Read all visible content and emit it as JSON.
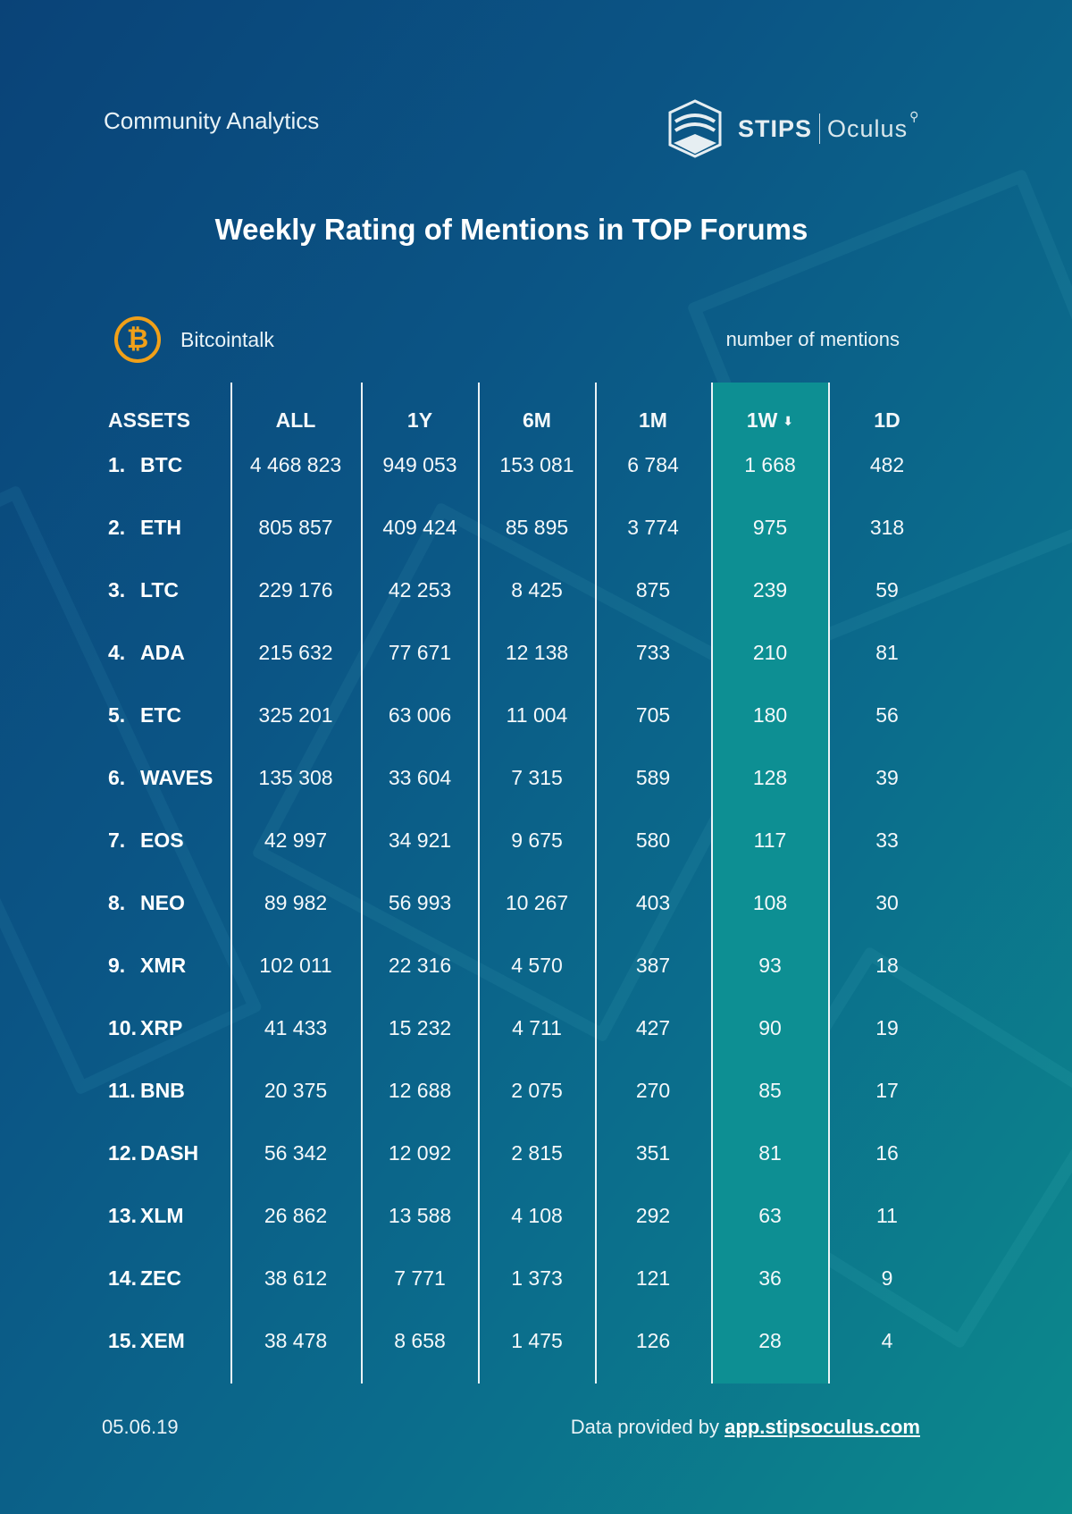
{
  "header": {
    "section": "Community Analytics",
    "logo_brand": "STIPS",
    "logo_product": "Oculus"
  },
  "title": "Weekly Rating of Mentions in TOP Forums",
  "forum": {
    "name": "Bitcointalk",
    "icon": "bitcoin-icon"
  },
  "unit_note": "number of mentions",
  "table": {
    "columns": [
      "ASSETS",
      "ALL",
      "1Y",
      "6M",
      "1M",
      "1W",
      "1D"
    ],
    "sorted_column": "1W",
    "highlight_color": "#0d8f93",
    "rows": [
      {
        "rank": "1.",
        "asset": "BTC",
        "all": "4 468 823",
        "y1": "949 053",
        "m6": "153 081",
        "m1": "6 784",
        "w1": "1 668",
        "d1": "482"
      },
      {
        "rank": "2.",
        "asset": "ETH",
        "all": "805 857",
        "y1": "409 424",
        "m6": "85 895",
        "m1": "3 774",
        "w1": "975",
        "d1": "318"
      },
      {
        "rank": "3.",
        "asset": "LTC",
        "all": "229 176",
        "y1": "42 253",
        "m6": "8 425",
        "m1": "875",
        "w1": "239",
        "d1": "59"
      },
      {
        "rank": "4.",
        "asset": "ADA",
        "all": "215 632",
        "y1": "77 671",
        "m6": "12 138",
        "m1": "733",
        "w1": "210",
        "d1": "81"
      },
      {
        "rank": "5.",
        "asset": "ETC",
        "all": "325 201",
        "y1": "63 006",
        "m6": "11 004",
        "m1": "705",
        "w1": "180",
        "d1": "56"
      },
      {
        "rank": "6.",
        "asset": "WAVES",
        "all": "135 308",
        "y1": "33 604",
        "m6": "7 315",
        "m1": "589",
        "w1": "128",
        "d1": "39"
      },
      {
        "rank": "7.",
        "asset": "EOS",
        "all": "42 997",
        "y1": "34 921",
        "m6": "9 675",
        "m1": "580",
        "w1": "117",
        "d1": "33"
      },
      {
        "rank": "8.",
        "asset": "NEO",
        "all": "89 982",
        "y1": "56 993",
        "m6": "10 267",
        "m1": "403",
        "w1": "108",
        "d1": "30"
      },
      {
        "rank": "9.",
        "asset": "XMR",
        "all": "102 011",
        "y1": "22 316",
        "m6": "4 570",
        "m1": "387",
        "w1": "93",
        "d1": "18"
      },
      {
        "rank": "10.",
        "asset": "XRP",
        "all": "41 433",
        "y1": "15 232",
        "m6": "4 711",
        "m1": "427",
        "w1": "90",
        "d1": "19"
      },
      {
        "rank": "11.",
        "asset": "BNB",
        "all": "20 375",
        "y1": "12 688",
        "m6": "2 075",
        "m1": "270",
        "w1": "85",
        "d1": "17"
      },
      {
        "rank": "12.",
        "asset": "DASH",
        "all": "56 342",
        "y1": "12 092",
        "m6": "2 815",
        "m1": "351",
        "w1": "81",
        "d1": "16"
      },
      {
        "rank": "13.",
        "asset": "XLM",
        "all": "26 862",
        "y1": "13 588",
        "m6": "4 108",
        "m1": "292",
        "w1": "63",
        "d1": "11"
      },
      {
        "rank": "14.",
        "asset": "ZEC",
        "all": "38 612",
        "y1": "7 771",
        "m6": "1 373",
        "m1": "121",
        "w1": "36",
        "d1": "9"
      },
      {
        "rank": "15.",
        "asset": "XEM",
        "all": "38 478",
        "y1": "8 658",
        "m6": "1 475",
        "m1": "126",
        "w1": "28",
        "d1": "4"
      }
    ]
  },
  "footer": {
    "date": "05.06.19",
    "credit_prefix": "Data provided by",
    "credit_link": "app.stipsoculus.com"
  }
}
